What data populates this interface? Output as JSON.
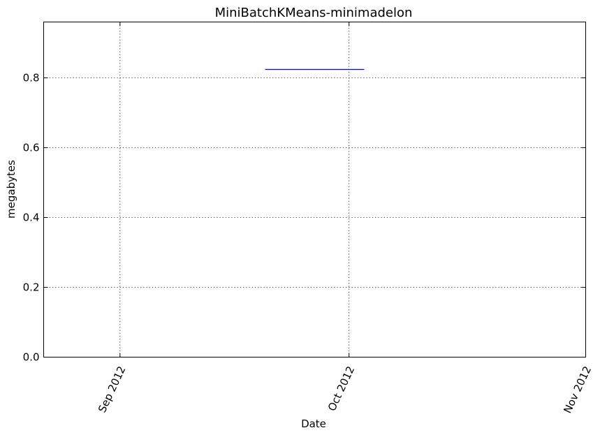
{
  "chart_data": {
    "type": "line",
    "title": "MiniBatchKMeans-minimadelon",
    "xlabel": "Date",
    "ylabel": "megabytes",
    "x_axis_type": "date",
    "xlim": [
      "2012-08-22",
      "2012-11-01"
    ],
    "ylim": [
      0,
      0.96
    ],
    "grid": true,
    "x_ticks": [
      {
        "date": "2012-09-01",
        "label": "Sep 2012"
      },
      {
        "date": "2012-10-01",
        "label": "Oct 2012"
      },
      {
        "date": "2012-11-01",
        "label": "Nov 2012"
      }
    ],
    "y_ticks": [
      {
        "value": 0.0,
        "label": "0.0"
      },
      {
        "value": 0.2,
        "label": "0.2"
      },
      {
        "value": 0.4,
        "label": "0.4"
      },
      {
        "value": 0.6,
        "label": "0.6"
      },
      {
        "value": 0.8,
        "label": "0.8"
      }
    ],
    "series": [
      {
        "name": "MiniBatchKMeans-minimadelon",
        "color": "#0000ff",
        "points": [
          {
            "x": "2012-09-20",
            "y": 0.824
          },
          {
            "x": "2012-10-03",
            "y": 0.824
          }
        ]
      }
    ]
  }
}
